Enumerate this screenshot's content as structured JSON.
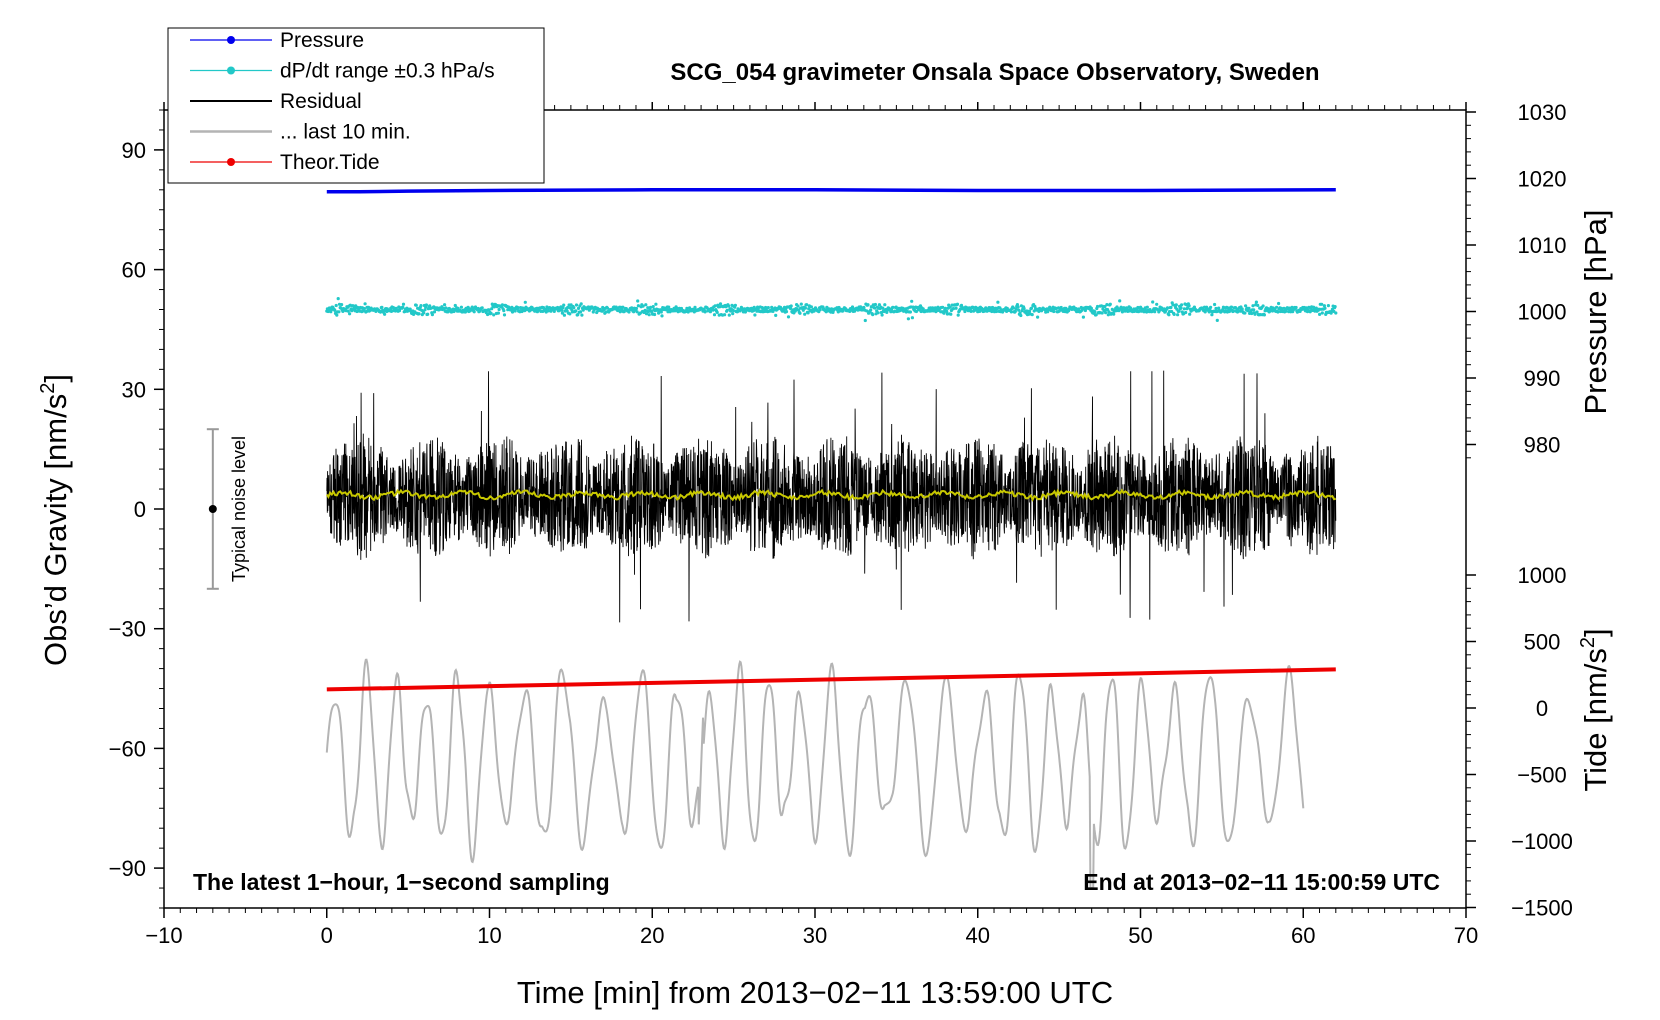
{
  "chart_data": {
    "type": "line",
    "title": "SCG_054 gravimeter Onsala Space Observatory, Sweden",
    "xlabel": "Time [min] from 2013−02−11 13:59:00 UTC",
    "ylabel_left_main": "Obs’d Gravity [nm/s",
    "ylabel_left_sup": "2",
    "ylabel_left_end": "]",
    "ylabel_right_top": "Pressure [hPa]",
    "ylabel_right_bottom_main": "Tide [nm/s",
    "ylabel_right_bottom_sup": "2",
    "ylabel_right_bottom_end": "]",
    "xlim": [
      -10,
      70
    ],
    "ylim_left": [
      -100,
      100
    ],
    "xticks": [
      -10,
      0,
      10,
      20,
      30,
      40,
      50,
      60,
      70
    ],
    "xtick_labels": [
      "−10",
      "0",
      "10",
      "20",
      "30",
      "40",
      "50",
      "60",
      "70"
    ],
    "yticks_left": [
      90,
      60,
      30,
      0,
      -30,
      -60,
      -90
    ],
    "ytick_labels_left": [
      "90",
      "60",
      "30",
      "0",
      "−30",
      "−60",
      "−90"
    ],
    "pressure_axis": {
      "ticks": [
        1030,
        1020,
        1010,
        1000,
        990,
        980
      ],
      "tick_labels": [
        "1030",
        "1020",
        "1010",
        "1000",
        "990",
        "980"
      ]
    },
    "tide_axis": {
      "ticks": [
        1000,
        500,
        0,
        -500,
        -1000,
        -1500
      ],
      "tick_labels": [
        "1000",
        "500",
        "0",
        "−500",
        "−1000",
        "−1500"
      ]
    },
    "legend": [
      {
        "label": "Pressure",
        "color": "#0000ee",
        "marker": true
      },
      {
        "label": "dP/dt range ±0.3 hPa/s",
        "color": "#22c8c8",
        "marker": true
      },
      {
        "label": "Residual",
        "color": "#000000",
        "marker": false
      },
      {
        "label": "... last 10 min.",
        "color": "#b4b4b4",
        "marker": false
      },
      {
        "label": "Theor.Tide",
        "color": "#ee0000",
        "marker": true
      }
    ],
    "series": [
      {
        "name": "Pressure",
        "color": "#0000ee",
        "axis": "pressure",
        "x": [
          0,
          2,
          5,
          10,
          20,
          30,
          40,
          50,
          62
        ],
        "values": [
          1018.0,
          1018.0,
          1018.1,
          1018.2,
          1018.3,
          1018.3,
          1018.2,
          1018.2,
          1018.3
        ]
      },
      {
        "name": "dP/dt range ±0.3 hPa/s",
        "color": "#22c8c8",
        "axis": "left",
        "center": 50.0,
        "spread": 1.3,
        "x_start": 0,
        "x_end": 62
      },
      {
        "name": "Residual",
        "color": "#000000",
        "axis": "left",
        "center": 3.0,
        "x_start": 0,
        "x_end": 62,
        "peak_max": 37,
        "peak_min": -30
      },
      {
        "name": "Residual smoothed",
        "color": "#c8c800",
        "axis": "left",
        "center": 3.5,
        "x_start": 0,
        "x_end": 62
      },
      {
        "name": "... last 10 min.",
        "color": "#b4b4b4",
        "axis": "left",
        "center": -63,
        "x_start": 0,
        "x_end": 60,
        "peak_max": -28,
        "peak_min": -97
      },
      {
        "name": "Theor.Tide",
        "color": "#ee0000",
        "axis": "tide",
        "x": [
          0,
          62
        ],
        "values": [
          140,
          290
        ]
      }
    ],
    "noise_bar": {
      "label": "Typical noise level",
      "x": -7,
      "y_low": -20,
      "y_high": 20,
      "y_center": 0
    },
    "annotation_left": "The latest 1−hour, 1−second sampling",
    "annotation_right": "End at 2013−02−11 15:00:59 UTC"
  }
}
